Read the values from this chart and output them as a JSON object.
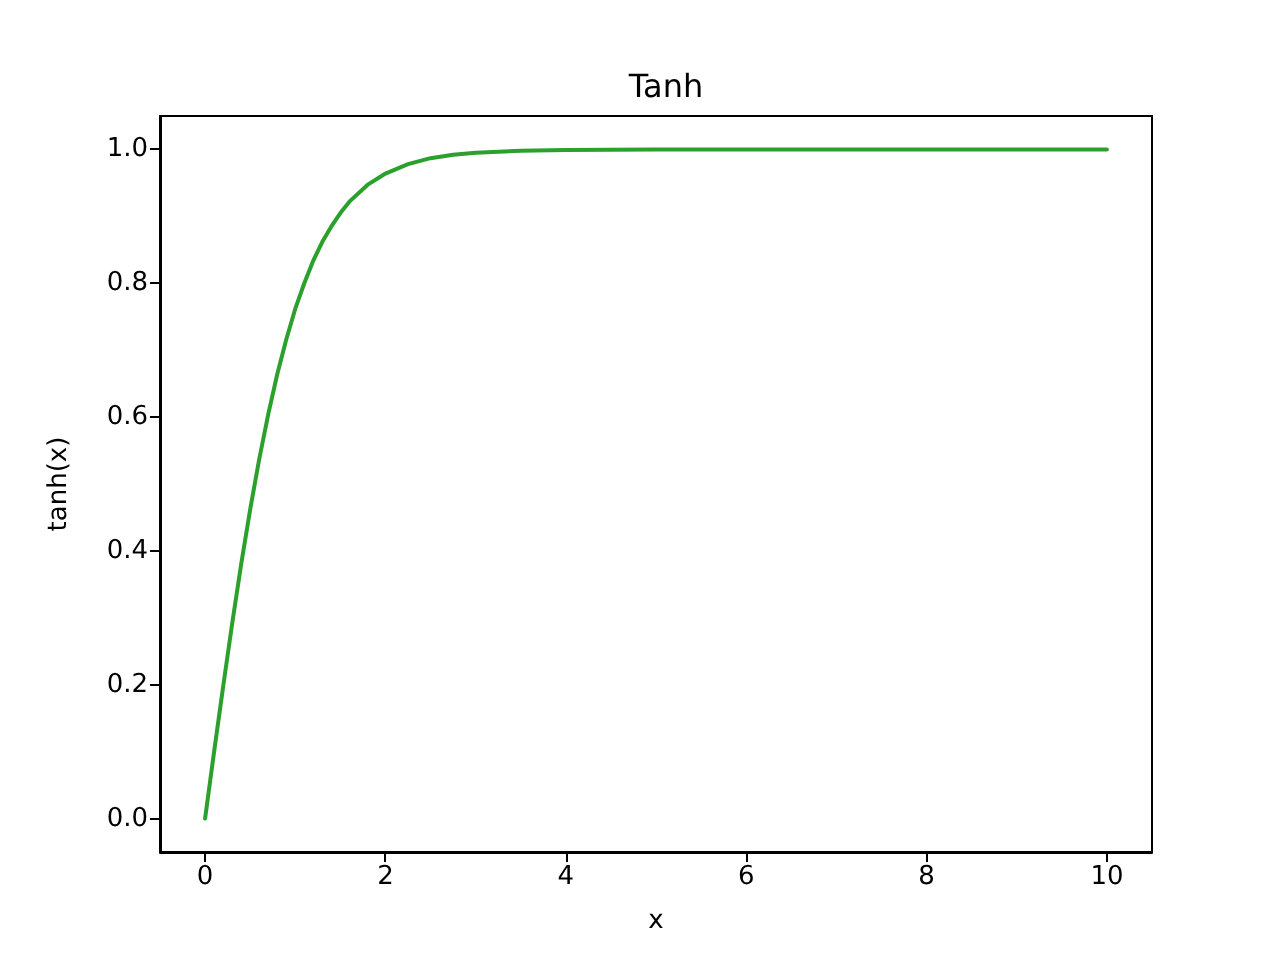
{
  "chart_data": {
    "type": "line",
    "title": "Tanh",
    "xlabel": "x",
    "ylabel": "tanh(x)",
    "series": [
      {
        "color": "#2ca02c",
        "x": [
          0,
          0.1,
          0.2,
          0.3,
          0.4,
          0.5,
          0.6,
          0.7,
          0.8,
          0.9,
          1.0,
          1.1,
          1.2,
          1.3,
          1.4,
          1.5,
          1.6,
          1.8,
          2.0,
          2.25,
          2.5,
          2.75,
          3,
          3.5,
          4,
          5,
          6,
          7,
          8,
          9,
          10
        ],
        "values": [
          0,
          0.1,
          0.197,
          0.291,
          0.38,
          0.462,
          0.537,
          0.604,
          0.664,
          0.716,
          0.762,
          0.8,
          0.834,
          0.862,
          0.885,
          0.905,
          0.922,
          0.947,
          0.964,
          0.978,
          0.987,
          0.992,
          0.995,
          0.998,
          0.999,
          1.0,
          1.0,
          1.0,
          1.0,
          1.0,
          1.0
        ]
      }
    ],
    "xlim": [
      -0.5,
      10.5
    ],
    "xticks": [
      0,
      2,
      4,
      6,
      8,
      10
    ],
    "ylim": [
      -0.05,
      1.05
    ],
    "yticks": [
      {
        "value": 0,
        "label": "0.0"
      },
      0.2,
      0.4,
      0.6,
      0.8,
      {
        "value": 1,
        "label": "1.0"
      }
    ]
  }
}
